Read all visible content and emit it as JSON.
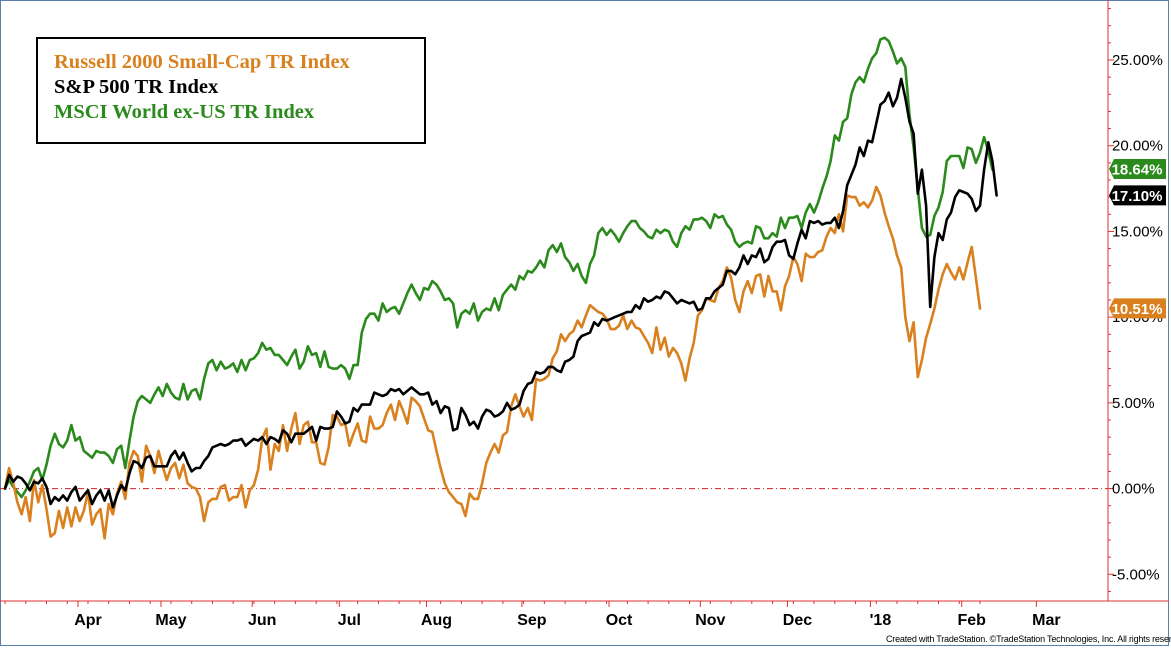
{
  "chart_data": {
    "type": "line",
    "y_unit": "%",
    "ylim": [
      -6.5,
      28.5
    ],
    "grid": false,
    "legend_placement": "top-left",
    "x_tick_labels": [
      "Apr",
      "May",
      "Jun",
      "Jul",
      "Aug",
      "Sep",
      "Oct",
      "Nov",
      "Dec",
      "'18",
      "Feb",
      "Mar"
    ],
    "y_tick_labels": [
      "25.00%",
      "20.00%",
      "15.00%",
      "10.00%",
      "5.00%",
      "0.00%",
      "-5.00%"
    ],
    "y_ticks": [
      25,
      20,
      15,
      10,
      5,
      0,
      -5
    ],
    "zero_line": 0,
    "series": [
      {
        "name": "Russell 2000 Small-Cap TR Index",
        "color": "#d9801f",
        "last_value_label": "10.51%",
        "last_value": 10.51,
        "values": [
          0.0,
          1.2,
          0.3,
          -0.8,
          -1.5,
          -0.5,
          -1.9,
          0.5,
          -0.8,
          0.2,
          -1.2,
          -2.8,
          -2.6,
          -1.3,
          -2.3,
          -1.1,
          -2.2,
          -1.1,
          -1.9,
          -1.3,
          -0.2,
          -2.1,
          -1.5,
          -1.2,
          -2.9,
          -0.9,
          -1.5,
          -0.3,
          0.4,
          -0.6,
          1.5,
          2.2,
          1.9,
          0.4,
          2.5,
          1.9,
          0.9,
          2.2,
          1.3,
          0.5,
          1.2,
          1.5,
          0.6,
          1.4,
          0.3,
          0.1,
          0.0,
          -0.5,
          -1.9,
          -0.8,
          -0.6,
          -0.6,
          0.1,
          0.2,
          -0.7,
          -0.5,
          -0.5,
          0.2,
          -1.1,
          -0.1,
          0.2,
          1.1,
          2.9,
          3.5,
          1.1,
          2.6,
          2.2,
          3.7,
          2.2,
          3.5,
          4.4,
          2.6,
          3.7,
          3.9,
          2.7,
          2.7,
          1.5,
          1.4,
          2.4,
          4.3,
          4.2,
          3.7,
          3.8,
          2.5,
          3.2,
          3.8,
          2.8,
          2.7,
          4.2,
          3.5,
          3.5,
          3.7,
          4.4,
          4.9,
          4.0,
          5.1,
          4.5,
          3.8,
          5.3,
          5.1,
          4.8,
          4.1,
          3.4,
          3.3,
          2.2,
          1.2,
          0.3,
          -0.2,
          -0.5,
          -0.8,
          -0.9,
          -1.6,
          -0.3,
          -0.6,
          -0.6,
          0.3,
          1.5,
          2.1,
          2.6,
          2.1,
          3.1,
          3.3,
          4.8,
          5.5,
          4.8,
          4.2,
          4.7,
          4.0,
          6.4,
          6.3,
          6.4,
          6.6,
          7.6,
          8.0,
          9.0,
          8.6,
          9.0,
          9.2,
          9.8,
          9.4,
          10.1,
          10.7,
          10.5,
          10.3,
          10.2,
          9.9,
          9.3,
          9.3,
          9.5,
          10.1,
          9.3,
          9.8,
          9.4,
          9.3,
          8.9,
          8.5,
          7.9,
          9.4,
          8.1,
          8.8,
          7.7,
          8.2,
          7.9,
          7.3,
          6.3,
          7.6,
          8.5,
          10.1,
          10.4,
          11.1,
          11.0,
          10.9,
          11.7,
          12.1,
          12.9,
          12.3,
          11.0,
          10.3,
          11.5,
          12.1,
          11.4,
          12.4,
          12.5,
          11.2,
          12.4,
          11.5,
          11.5,
          10.4,
          11.8,
          12.4,
          13.5,
          13.1,
          12.1,
          13.7,
          13.5,
          13.5,
          13.8,
          13.9,
          14.7,
          15.2,
          14.9,
          16.0,
          15.0,
          17.1,
          17.0,
          17.0,
          16.5,
          16.7,
          16.4,
          16.8,
          17.6,
          17.1,
          16.1,
          15.3,
          14.6,
          13.6,
          12.9,
          10.0,
          8.6,
          9.7,
          6.5,
          7.5,
          8.8,
          9.6,
          10.5,
          11.6,
          12.5,
          13.1,
          12.6,
          12.2,
          12.9,
          12.2,
          13.2,
          14.1,
          12.3,
          10.5
        ]
      },
      {
        "name": "S&P 500 TR Index",
        "color": "#000000",
        "last_value_label": "17.10%",
        "last_value": 17.1,
        "values": [
          0.0,
          0.8,
          0.4,
          0.7,
          0.6,
          0.3,
          -0.1,
          0.4,
          0.3,
          0.6,
          0.1,
          -0.9,
          -0.5,
          -0.7,
          -0.4,
          -0.7,
          -0.2,
          0.1,
          -0.7,
          -0.4,
          -0.1,
          -0.9,
          -0.4,
          -0.1,
          -0.7,
          -0.1,
          -1.1,
          -0.4,
          0.2,
          -0.1,
          0.9,
          1.6,
          1.5,
          1.2,
          1.8,
          1.9,
          1.3,
          1.3,
          1.3,
          1.3,
          1.9,
          2.2,
          1.7,
          2.1,
          1.5,
          1.0,
          1.2,
          1.2,
          1.6,
          1.9,
          2.4,
          2.5,
          2.6,
          2.5,
          2.6,
          2.8,
          2.8,
          2.9,
          2.5,
          2.7,
          2.9,
          2.8,
          3.0,
          2.6,
          3.0,
          2.9,
          2.7,
          3.4,
          3.2,
          2.7,
          3.2,
          3.2,
          3.2,
          3.4,
          3.6,
          2.8,
          3.6,
          3.5,
          3.5,
          3.6,
          4.5,
          4.2,
          3.8,
          3.9,
          4.7,
          4.5,
          4.9,
          4.9,
          4.9,
          5.6,
          5.5,
          5.4,
          5.5,
          5.8,
          5.7,
          5.8,
          5.5,
          5.7,
          5.9,
          5.7,
          5.5,
          5.5,
          5.6,
          4.9,
          5.1,
          4.4,
          4.8,
          4.7,
          3.4,
          3.5,
          4.7,
          4.3,
          3.7,
          3.9,
          3.5,
          4.2,
          4.6,
          4.5,
          4.2,
          4.3,
          4.5,
          5.0,
          4.6,
          4.7,
          4.9,
          5.7,
          6.1,
          6.2,
          6.8,
          6.7,
          6.8,
          7.1,
          7.1,
          6.9,
          6.8,
          7.4,
          7.5,
          7.7,
          8.6,
          8.9,
          9.0,
          9.1,
          9.7,
          9.5,
          9.9,
          9.8,
          9.9,
          10.0,
          10.1,
          10.2,
          10.3,
          10.3,
          10.7,
          10.5,
          11.1,
          10.9,
          11.0,
          11.2,
          11.1,
          11.5,
          11.4,
          11.1,
          10.8,
          11.0,
          10.9,
          10.8,
          10.9,
          10.4,
          10.5,
          11.1,
          11.1,
          11.5,
          11.7,
          11.9,
          12.7,
          12.7,
          12.5,
          12.9,
          13.6,
          13.1,
          13.6,
          13.5,
          14.0,
          13.2,
          13.4,
          14.1,
          14.4,
          14.4,
          14.5,
          13.6,
          13.4,
          14.3,
          15.1,
          14.6,
          15.6,
          15.5,
          15.6,
          15.4,
          15.5,
          15.5,
          15.8,
          15.2,
          16.2,
          17.7,
          18.3,
          18.9,
          19.9,
          19.4,
          20.3,
          20.2,
          21.3,
          22.4,
          22.6,
          23.1,
          22.3,
          22.8,
          23.9,
          22.8,
          21.4,
          20.7,
          17.2,
          18.6,
          16.5,
          10.6,
          13.5,
          14.9,
          14.5,
          15.7,
          16.1,
          17.0,
          17.4,
          17.3,
          17.2,
          16.9,
          16.2,
          16.5,
          18.6,
          20.2,
          19.1,
          17.1
        ]
      },
      {
        "name": "MSCI World ex-US TR Index",
        "color": "#2b8a1c",
        "last_value_label": "18.64%",
        "last_value": 18.64,
        "values": [
          0.0,
          0.5,
          0.1,
          -0.2,
          -0.5,
          -0.1,
          0.4,
          1.0,
          1.2,
          0.5,
          1.4,
          2.5,
          3.2,
          2.6,
          2.4,
          2.8,
          3.7,
          2.8,
          3.0,
          2.2,
          2.0,
          1.8,
          2.2,
          2.1,
          2.1,
          1.9,
          1.5,
          2.3,
          2.5,
          1.2,
          2.8,
          4.2,
          5.1,
          5.4,
          5.2,
          5.0,
          5.5,
          5.9,
          5.4,
          6.1,
          5.6,
          5.3,
          5.2,
          6.1,
          5.2,
          5.7,
          5.8,
          5.2,
          6.4,
          7.3,
          7.5,
          6.9,
          7.4,
          7.0,
          7.1,
          7.3,
          6.8,
          7.5,
          6.9,
          7.5,
          7.6,
          7.9,
          8.5,
          8.1,
          8.2,
          7.8,
          7.8,
          7.5,
          7.2,
          7.7,
          8.1,
          7.0,
          7.4,
          8.3,
          7.8,
          7.9,
          7.1,
          8.0,
          7.1,
          7.0,
          7.0,
          7.2,
          7.0,
          6.4,
          7.2,
          7.2,
          9.1,
          9.9,
          10.2,
          10.2,
          9.8,
          10.8,
          10.3,
          10.5,
          10.6,
          10.2,
          10.8,
          11.4,
          11.9,
          11.4,
          11.0,
          11.7,
          11.6,
          12.1,
          11.9,
          11.5,
          11.0,
          11.1,
          10.8,
          9.4,
          10.2,
          10.4,
          10.2,
          10.8,
          9.8,
          10.3,
          10.5,
          10.4,
          11.1,
          10.4,
          11.3,
          11.6,
          11.9,
          11.6,
          12.4,
          12.2,
          12.7,
          12.6,
          12.9,
          13.3,
          12.9,
          13.9,
          14.2,
          13.8,
          14.3,
          13.5,
          13.2,
          12.7,
          13.1,
          12.4,
          12.0,
          13.1,
          13.6,
          14.9,
          15.2,
          14.8,
          15.1,
          14.8,
          14.4,
          14.9,
          15.3,
          15.6,
          15.6,
          15.2,
          15.0,
          14.7,
          14.6,
          15.1,
          14.9,
          15.1,
          15.0,
          14.4,
          14.1,
          14.9,
          15.3,
          15.1,
          15.7,
          15.7,
          15.8,
          15.6,
          15.2,
          16.0,
          15.8,
          15.9,
          15.4,
          15.1,
          14.4,
          14.1,
          14.3,
          14.4,
          14.3,
          15.3,
          15.2,
          14.6,
          14.6,
          14.9,
          14.7,
          15.8,
          15.2,
          15.8,
          15.8,
          15.9,
          15.2,
          16.1,
          16.6,
          16.1,
          16.7,
          17.5,
          18.2,
          19.1,
          20.6,
          20.3,
          21.4,
          21.6,
          23.0,
          23.7,
          24.0,
          23.7,
          24.5,
          25.1,
          25.4,
          26.2,
          26.3,
          26.1,
          25.5,
          24.8,
          25.1,
          24.6,
          21.8,
          19.9,
          17.5,
          15.2,
          14.7,
          14.8,
          15.9,
          16.4,
          17.3,
          19.1,
          19.4,
          19.4,
          19.4,
          18.7,
          19.9,
          19.8,
          19.0,
          19.6,
          20.5,
          19.7,
          18.6
        ]
      }
    ]
  },
  "credit_text": "Created with TradeStation. ©TradeStation Technologies, Inc. All rights reserved."
}
